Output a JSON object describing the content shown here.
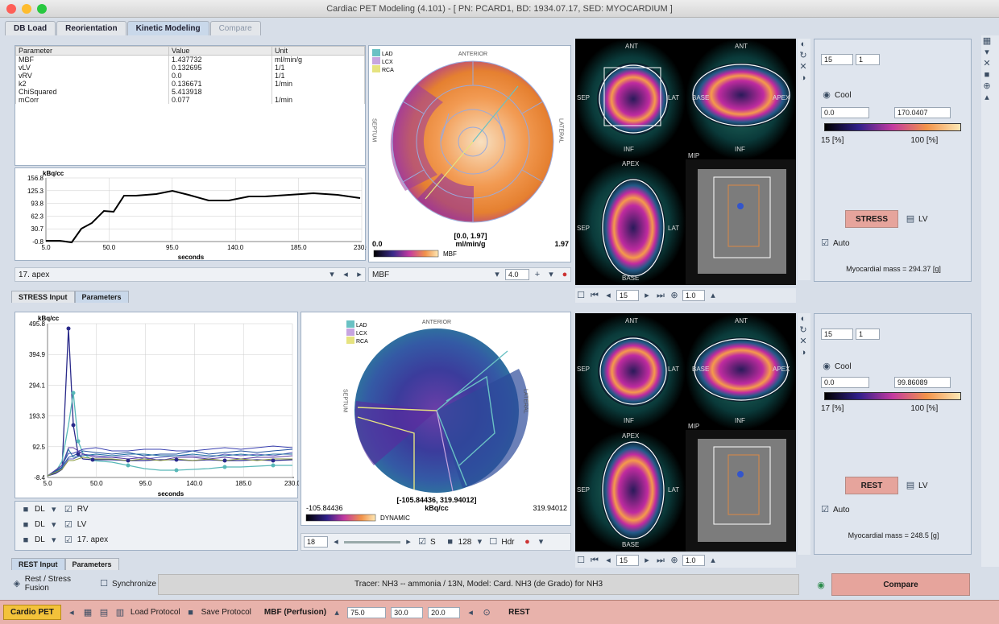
{
  "window": {
    "title": "Cardiac PET Modeling (4.101) - [ PN: PCARD1, BD: 1934.07.17, SED: MYOCARDIUM ]"
  },
  "tabs": [
    "DB Load",
    "Reorientation",
    "Kinetic Modeling",
    "Compare"
  ],
  "params_table": {
    "headers": [
      "Parameter",
      "Value",
      "Unit"
    ],
    "rows": [
      [
        "MBF",
        "1.437732",
        "ml/min/g"
      ],
      [
        "vLV",
        "0.132695",
        "1/1"
      ],
      [
        "vRV",
        "0.0",
        "1/1"
      ],
      [
        "k2",
        "0.136671",
        "1/min"
      ],
      [
        "ChiSquared",
        "5.413918",
        ""
      ],
      [
        "mCorr",
        "0.077",
        "1/min"
      ]
    ]
  },
  "top_curve": {
    "ylabel": "kBq/cc",
    "yticks": [
      "156.8",
      "125.3",
      "93.8",
      "62.3",
      "30.7",
      "-0.8"
    ],
    "xticks": [
      "5.0",
      "50.0",
      "95.0",
      "140.0",
      "185.0",
      "230.0"
    ],
    "xlabel": "seconds",
    "segment_select": "17. apex"
  },
  "top_polar": {
    "legend": [
      "LAD",
      "LCX",
      "RCA"
    ],
    "anterior": "ANTERIOR",
    "septum": "SEPTUM",
    "lateral": "LATERAL",
    "range_text": "[0.0, 1.97]",
    "unit_text": "ml/min/g",
    "min": "0.0",
    "max": "1.97",
    "bar_label": "MBF",
    "param_select": "MBF",
    "spin_value": "4.0"
  },
  "lower_tabs_top": [
    "STRESS Input",
    "Parameters"
  ],
  "bottom_curve": {
    "ylabel": "kBq/cc",
    "yticks": [
      "495.8",
      "394.9",
      "294.1",
      "193.3",
      "92.5",
      "-8.4"
    ],
    "xticks": [
      "5.0",
      "50.0",
      "95.0",
      "140.0",
      "185.0",
      "230.0"
    ],
    "xlabel": "seconds",
    "rows": [
      {
        "prefix": "DL",
        "label": "RV"
      },
      {
        "prefix": "DL",
        "label": "LV"
      },
      {
        "prefix": "DL",
        "label": "17. apex"
      }
    ]
  },
  "bottom_polar": {
    "legend": [
      "LAD",
      "LCX",
      "RCA"
    ],
    "anterior": "ANTERIOR",
    "septum": "SEPTUM",
    "lateral": "LATERAL",
    "range_text": "[-105.84436, 319.94012]",
    "unit_text": "kBq/cc",
    "min": "-105.84436",
    "max": "319.94012",
    "bar_label": "DYNAMIC",
    "frame": "18",
    "s_label": "S",
    "res": "128",
    "hdr_label": "Hdr"
  },
  "lower_tabs_bottom": [
    "REST Input",
    "Parameters"
  ],
  "images_top": {
    "labels": [
      "ANT",
      "ANT",
      "SEP",
      "LAT",
      "BASE",
      "APEX",
      "INF",
      "INF",
      "APEX",
      "SEP",
      "LAT",
      "BASE",
      "MIP"
    ],
    "slice": "15",
    "zoom": "1.0"
  },
  "images_bottom": {
    "slice": "15",
    "zoom": "1.0"
  },
  "ctrl_top": {
    "v1": "15",
    "v2": "1",
    "colormap": "Cool",
    "min": "0.0",
    "max": "170.0407",
    "pct_low": "15 [%]",
    "pct_high": "100 [%]",
    "mode_label": "STRESS",
    "lv_label": "LV",
    "auto_label": "Auto",
    "mass": "Myocardial mass = 294.37 [g]"
  },
  "ctrl_bottom": {
    "v1": "15",
    "v2": "1",
    "colormap": "Cool",
    "min": "0.0",
    "max": "99.86089",
    "pct_low": "17 [%]",
    "pct_high": "100 [%]",
    "mode_label": "REST",
    "lv_label": "LV",
    "auto_label": "Auto",
    "mass": "Myocardial mass = 248.5 [g]"
  },
  "status": {
    "fusion": "Rest / Stress Fusion",
    "sync": "Synchronize",
    "tracer": "Tracer: NH3 -- ammonia / 13N,  Model: Card. NH3 (de Grado) for NH3",
    "compare": "Compare"
  },
  "bottom": {
    "app": "Cardio PET",
    "load": "Load Protocol",
    "save": "Save Protocol",
    "mbf": "MBF (Perfusion)",
    "f1": "75.0",
    "f2": "30.0",
    "f3": "20.0",
    "rest": "REST"
  },
  "colors": {
    "accent_pink": "#e6a49c",
    "panel_blue": "#d7dee8"
  }
}
